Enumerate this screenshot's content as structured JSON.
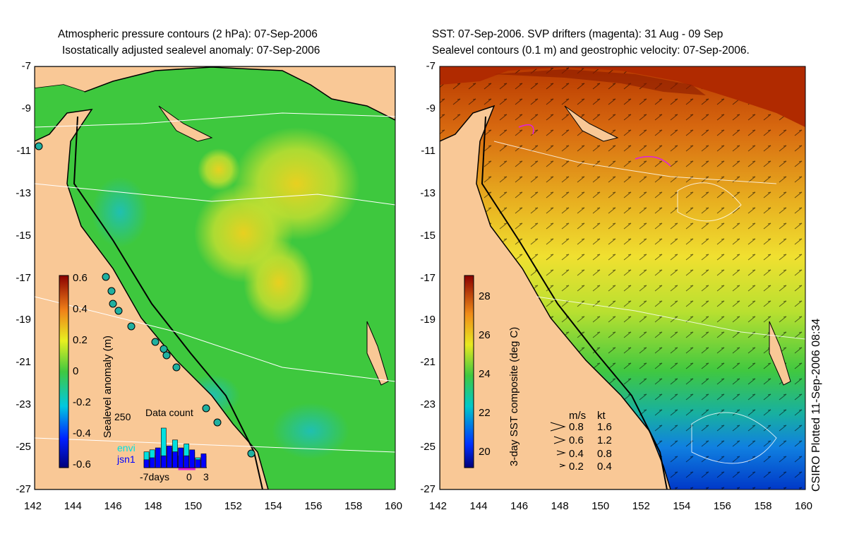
{
  "left_panel": {
    "title_line1": "Atmospheric pressure contours (2 hPa): 07-Sep-2006",
    "title_line2": "Isostatically adjusted sealevel anomaly: 07-Sep-2006",
    "colorbar_label": "Sealevel anomaly (m)",
    "colorbar_ticks": [
      "0.6",
      "0.4",
      "0.2",
      "0",
      "-0.2",
      "-0.4",
      "-0.6"
    ],
    "inset": {
      "title": "Data count",
      "ymax_label": "250",
      "legend": [
        {
          "name": "envi",
          "color": "#00e0e0"
        },
        {
          "name": "jsn1",
          "color": "#0000ff"
        }
      ],
      "x_labels": [
        "-7days",
        "0",
        "3"
      ]
    }
  },
  "right_panel": {
    "title_line1": "SST: 07-Sep-2006. SVP drifters (magenta): 31 Aug - 09 Sep",
    "title_line2": "Sealevel contours (0.1 m) and geostrophic velocity: 07-Sep-2006.",
    "colorbar_label": "3-day SST composite (deg C)",
    "colorbar_ticks": [
      "28",
      "26",
      "24",
      "22",
      "20"
    ],
    "velocity_legend": {
      "header_ms": "m/s",
      "header_kt": "kt",
      "rows": [
        {
          "ms": "0.8",
          "kt": "1.6"
        },
        {
          "ms": "0.6",
          "kt": "1.2"
        },
        {
          "ms": "0.4",
          "kt": "0.8"
        },
        {
          "ms": "0.2",
          "kt": "0.4"
        }
      ]
    }
  },
  "y_ticks": [
    "-7",
    "-9",
    "-11",
    "-13",
    "-15",
    "-17",
    "-19",
    "-21",
    "-23",
    "-25",
    "-27"
  ],
  "x_ticks": [
    "142",
    "144",
    "146",
    "148",
    "150",
    "152",
    "154",
    "156",
    "158",
    "160"
  ],
  "credit": "CSIRO Plotted 11-Sep-2006 08:34",
  "colors": {
    "land": "#f9c896",
    "sla_green": "#38c83a",
    "sst_orange": "#e07a18",
    "sst_yellow": "#e8e020"
  },
  "chart_data": [
    {
      "type": "heatmap",
      "title": "Atmospheric pressure contours (2 hPa): 07-Sep-2006 / Isostatically adjusted sealevel anomaly: 07-Sep-2006",
      "colorbar_label": "Sealevel anomaly (m)",
      "colorbar_range": [
        -0.6,
        0.6
      ],
      "xlim": [
        142,
        160
      ],
      "ylim": [
        -27,
        -7
      ],
      "inset_bar_counts": {
        "days": [
          -7,
          -6,
          -5,
          -4,
          -3,
          -2,
          -1,
          0,
          1,
          2,
          3
        ],
        "envi": [
          80,
          90,
          60,
          200,
          100,
          140,
          60,
          120,
          80,
          50,
          60
        ],
        "jsn1": [
          40,
          50,
          100,
          60,
          110,
          80,
          100,
          60,
          90,
          40,
          70
        ]
      }
    },
    {
      "type": "heatmap",
      "title": "SST: 07-Sep-2006. SVP drifters (magenta): 31 Aug - 09 Sep / Sealevel contours (0.1 m) and geostrophic velocity: 07-Sep-2006.",
      "colorbar_label": "3-day SST composite (deg C)",
      "colorbar_range": [
        19,
        29
      ],
      "xlim": [
        142,
        160
      ],
      "ylim": [
        -27,
        -7
      ]
    }
  ]
}
